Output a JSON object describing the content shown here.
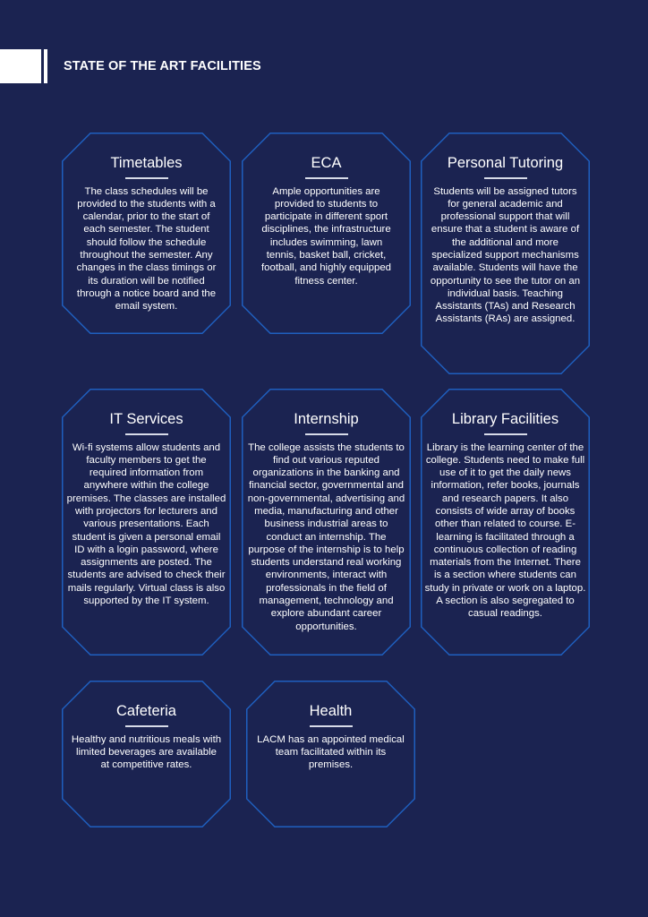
{
  "page": {
    "title": "STATE OF THE ART FACILITIES",
    "colors": {
      "background": "#1b2351",
      "card_border": "#1f5fbf",
      "text": "#ffffff"
    }
  },
  "facilities": [
    {
      "title": "Timetables",
      "body": "The class schedules will be provided to the students with a calendar, prior to the start of each semester. The student should follow the schedule throughout the semester. Any changes in the class timings or its duration will be notified through a notice board and the email system."
    },
    {
      "title": "ECA",
      "body": "Ample opportunities are provided to students to participate in different sport disciplines, the infrastructure includes swimming, lawn tennis, basket ball, cricket, football, and highly equipped fitness center."
    },
    {
      "title": "Personal Tutoring",
      "body": "Students will be assigned tutors for general academic and professional support that will ensure that a student is aware of the additional and more specialized support mechanisms available. Students will have the opportunity to see the tutor on an individual basis. Teaching Assistants (TAs) and Research Assistants (RAs) are assigned."
    },
    {
      "title": "IT Services",
      "body": "Wi-fi systems allow students and faculty members to get the required information from anywhere within the college premises. The classes are installed with projectors for lecturers and various presentations. Each student is given a personal email ID with a login password, where assignments are posted. The students are advised to check their mails regularly. Virtual class is also supported by the IT system."
    },
    {
      "title": "Internship",
      "body": "The college assists the students to find out various reputed organizations in the banking and financial sector, governmental and non-governmental, advertising and media, manufacturing and other business industrial areas to conduct an internship. The purpose of the internship is to help students understand real working environments, interact with professionals in the field of management, technology and explore abundant career opportunities."
    },
    {
      "title": "Library Facilities",
      "body": "Library is the learning center of the college. Students need to make full use of it to get the daily news information, refer books, journals and research papers. It also consists of wide array of books other than related to course. E-learning is facilitated through a continuous collection of reading materials from the Internet. There is a section where students can study in private or work on a laptop. A section is also segregated to casual readings."
    },
    {
      "title": "Cafeteria",
      "body": "Healthy and nutritious meals with limited beverages are available at competitive rates."
    },
    {
      "title": "Health",
      "body": "LACM has an appointed medical team facilitated within its premises."
    }
  ]
}
